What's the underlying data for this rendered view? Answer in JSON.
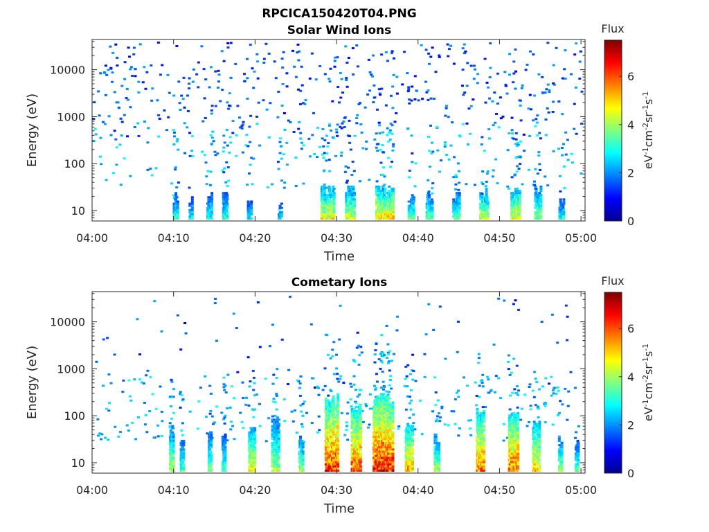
{
  "figure_title": "RPCICA150420T04.PNG",
  "colormap": {
    "name": "jet",
    "stops": [
      "#00008f",
      "#0000ff",
      "#0080ff",
      "#00ffff",
      "#80ff80",
      "#ffff00",
      "#ff8000",
      "#ff0000",
      "#800000"
    ]
  },
  "chart_data": [
    {
      "type": "heatmap",
      "title": "Solar Wind Ions",
      "xlabel": "Time",
      "ylabel": "Energy (eV)",
      "x_ticks": [
        "04:00",
        "04:10",
        "04:20",
        "04:30",
        "04:40",
        "04:50",
        "05:00"
      ],
      "xlim_minutes": [
        0,
        60.5
      ],
      "y_scale": "log",
      "y_ticks": [
        {
          "value": 10,
          "label": "10"
        },
        {
          "value": 100,
          "label": "100"
        },
        {
          "value": 1000,
          "label": "1000"
        },
        {
          "value": 10000,
          "label": "10000"
        }
      ],
      "ylim": [
        6,
        44000
      ],
      "colorbar": {
        "title": "Flux",
        "label": "eV-1cm-2sr-1s-1",
        "range": [
          0,
          7.5
        ],
        "ticks": [
          "0",
          "2",
          "4",
          "6"
        ]
      },
      "random_seed": 11,
      "background_counts": {
        "high_energy": 430,
        "mid_energy": 170
      },
      "bursts": [
        {
          "t": 10.2,
          "width": 0.6,
          "peak": 3.4,
          "max_energy": 25
        },
        {
          "t": 12.0,
          "width": 0.4,
          "peak": 3.0,
          "max_energy": 20
        },
        {
          "t": 14.3,
          "width": 0.6,
          "peak": 3.2,
          "max_energy": 25
        },
        {
          "t": 16.2,
          "width": 0.6,
          "peak": 3.4,
          "max_energy": 25
        },
        {
          "t": 19.2,
          "width": 0.5,
          "peak": 3.0,
          "max_energy": 20
        },
        {
          "t": 23.0,
          "width": 0.4,
          "peak": 2.8,
          "max_energy": 15
        },
        {
          "t": 28.8,
          "width": 1.6,
          "peak": 5.0,
          "max_energy": 35
        },
        {
          "t": 31.5,
          "width": 1.2,
          "peak": 4.6,
          "max_energy": 35
        },
        {
          "t": 35.8,
          "width": 2.2,
          "peak": 5.3,
          "max_energy": 35
        },
        {
          "t": 39.0,
          "width": 0.8,
          "peak": 4.0,
          "max_energy": 25
        },
        {
          "t": 41.3,
          "width": 0.8,
          "peak": 3.8,
          "max_energy": 25
        },
        {
          "t": 44.6,
          "width": 0.8,
          "peak": 3.8,
          "max_energy": 25
        },
        {
          "t": 48.0,
          "width": 1.0,
          "peak": 4.8,
          "max_energy": 30
        },
        {
          "t": 51.8,
          "width": 1.2,
          "peak": 5.0,
          "max_energy": 30
        },
        {
          "t": 54.6,
          "width": 0.8,
          "peak": 4.2,
          "max_energy": 35
        },
        {
          "t": 57.5,
          "width": 0.6,
          "peak": 3.4,
          "max_energy": 20
        }
      ]
    },
    {
      "type": "heatmap",
      "title": "Cometary Ions",
      "xlabel": "Time",
      "ylabel": "Energy (eV)",
      "x_ticks": [
        "04:00",
        "04:10",
        "04:20",
        "04:30",
        "04:40",
        "04:50",
        "05:00"
      ],
      "xlim_minutes": [
        0,
        60.5
      ],
      "y_scale": "log",
      "y_ticks": [
        {
          "value": 10,
          "label": "10"
        },
        {
          "value": 100,
          "label": "100"
        },
        {
          "value": 1000,
          "label": "1000"
        },
        {
          "value": 10000,
          "label": "10000"
        }
      ],
      "ylim": [
        6,
        44000
      ],
      "colorbar": {
        "title": "Flux",
        "label": "eV-1cm-2sr-1s-1",
        "range": [
          0,
          7.5
        ],
        "ticks": [
          "0",
          "2",
          "4",
          "6"
        ]
      },
      "random_seed": 29,
      "background_counts": {
        "high_energy": 70,
        "mid_energy": 260
      },
      "bursts": [
        {
          "t": 9.6,
          "width": 0.6,
          "peak": 4.4,
          "max_energy": 60
        },
        {
          "t": 11.0,
          "width": 0.5,
          "peak": 3.6,
          "max_energy": 40
        },
        {
          "t": 14.4,
          "width": 0.5,
          "peak": 3.8,
          "max_energy": 50
        },
        {
          "t": 16.1,
          "width": 0.5,
          "peak": 3.6,
          "max_energy": 40
        },
        {
          "t": 19.5,
          "width": 0.8,
          "peak": 5.0,
          "max_energy": 60
        },
        {
          "t": 22.4,
          "width": 0.9,
          "peak": 4.2,
          "max_energy": 100
        },
        {
          "t": 25.5,
          "width": 0.6,
          "peak": 4.2,
          "max_energy": 40
        },
        {
          "t": 29.3,
          "width": 1.6,
          "peak": 6.6,
          "max_energy": 300
        },
        {
          "t": 32.3,
          "width": 1.2,
          "peak": 6.2,
          "max_energy": 200
        },
        {
          "t": 35.6,
          "width": 2.4,
          "peak": 6.8,
          "max_energy": 300
        },
        {
          "t": 38.8,
          "width": 0.9,
          "peak": 5.6,
          "max_energy": 80
        },
        {
          "t": 42.2,
          "width": 0.6,
          "peak": 4.4,
          "max_energy": 40
        },
        {
          "t": 47.6,
          "width": 1.0,
          "peak": 6.0,
          "max_energy": 150
        },
        {
          "t": 51.6,
          "width": 1.2,
          "peak": 6.2,
          "max_energy": 120
        },
        {
          "t": 54.4,
          "width": 0.9,
          "peak": 5.2,
          "max_energy": 80
        },
        {
          "t": 57.3,
          "width": 0.5,
          "peak": 4.2,
          "max_energy": 40
        },
        {
          "t": 59.4,
          "width": 0.4,
          "peak": 3.6,
          "max_energy": 30
        }
      ]
    }
  ]
}
